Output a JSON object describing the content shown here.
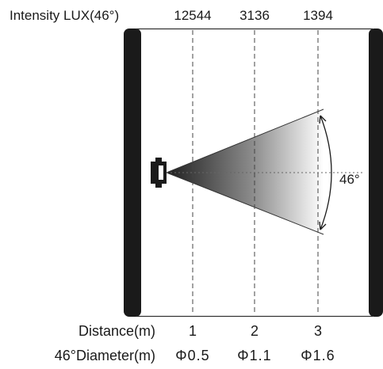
{
  "intensity_label": "Intensity LUX(46°)",
  "intensity_values": [
    "12544",
    "3136",
    "1394"
  ],
  "distance_label": "Distance(m)",
  "distance_values": [
    "1",
    "2",
    "3"
  ],
  "diameter_label": "46°Diameter(m)",
  "diameter_values": [
    "Φ0.5",
    "Φ1.1",
    "Φ1.6"
  ],
  "beam_angle_label": "46°",
  "colors": {
    "frame": "#1a1a1a",
    "beam_dark": "#1f1f1f",
    "beam_light": "#ffffff",
    "line": "#333333"
  }
}
